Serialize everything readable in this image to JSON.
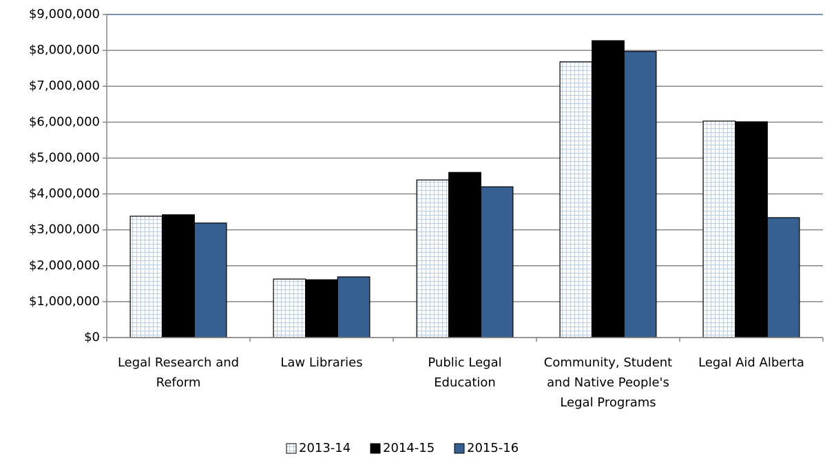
{
  "chart_data": {
    "type": "bar",
    "categories": [
      "Legal Research and Reform",
      "Law Libraries",
      "Public Legal Education",
      "Community, Student and Native People's Legal Programs",
      "Legal Aid Alberta"
    ],
    "series": [
      {
        "name": "2013-14",
        "color": "#b9cde5",
        "pattern": "grid",
        "values": [
          3380000,
          1630000,
          4390000,
          7680000,
          6030000
        ]
      },
      {
        "name": "2014-15",
        "color": "#000000",
        "values": [
          3420000,
          1610000,
          4600000,
          8270000,
          6010000
        ]
      },
      {
        "name": "2015-16",
        "color": "#376092",
        "values": [
          3190000,
          1690000,
          4200000,
          7970000,
          3340000
        ]
      }
    ],
    "ylim": [
      0,
      9000000
    ],
    "yticks": [
      {
        "value": 0,
        "label": "$0"
      },
      {
        "value": 1000000,
        "label": "$1,000,000"
      },
      {
        "value": 2000000,
        "label": "$2,000,000"
      },
      {
        "value": 3000000,
        "label": "$3,000,000"
      },
      {
        "value": 4000000,
        "label": "$4,000,000"
      },
      {
        "value": 5000000,
        "label": "$5,000,000"
      },
      {
        "value": 6000000,
        "label": "$6,000,000"
      },
      {
        "value": 7000000,
        "label": "$7,000,000"
      },
      {
        "value": 8000000,
        "label": "$8,000,000"
      },
      {
        "value": 9000000,
        "label": "$9,000,000"
      }
    ],
    "grid": true,
    "legend": "bottom"
  }
}
